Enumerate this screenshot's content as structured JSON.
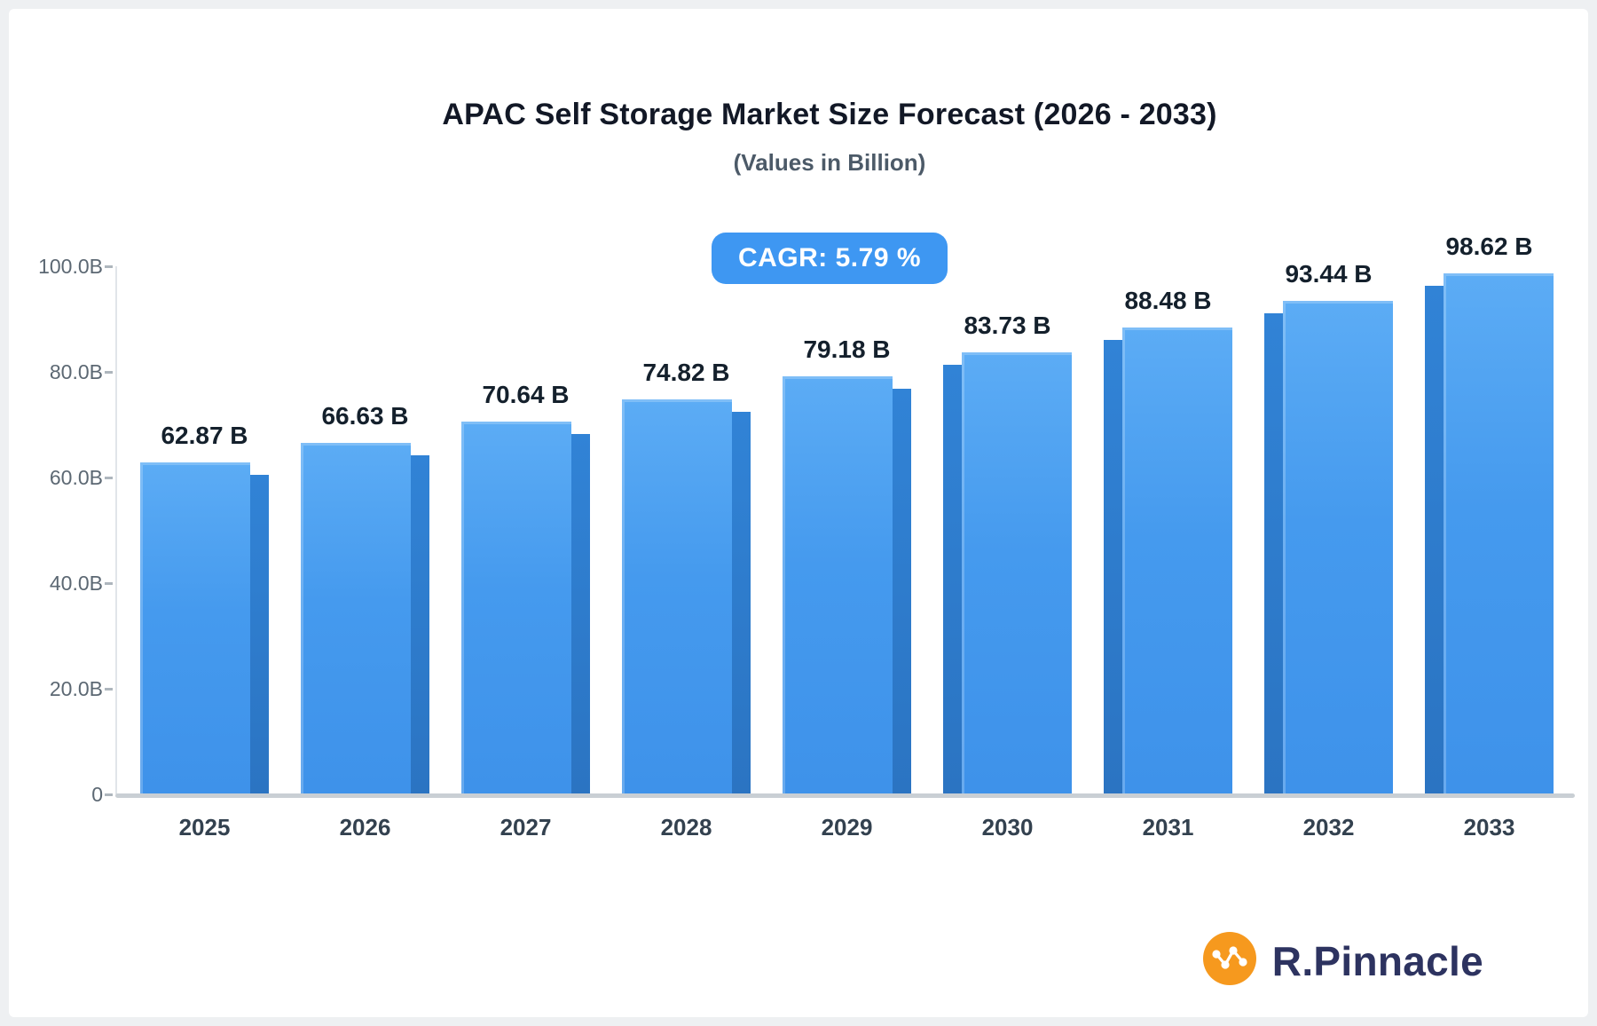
{
  "header": {
    "title": "APAC Self Storage Market Size Forecast (2026 - 2033)",
    "subtitle": "(Values in Billion)"
  },
  "badge": {
    "label": "CAGR: 5.79 %"
  },
  "brand": {
    "name": "R.Pinnacle",
    "icon": "network-nodes-icon",
    "icon_color": "#F6991E",
    "text_color": "#2D3360"
  },
  "colors": {
    "bar_face_top": "#5CACF5",
    "bar_face_bottom": "#3E92EA",
    "bar_side": "#2B74C2",
    "badge_bg": "#3E97F2",
    "axis_line": "#C9CFD4"
  },
  "chart_data": {
    "type": "bar",
    "title": "APAC Self Storage Market Size Forecast (2026 - 2033)",
    "subtitle": "(Values in Billion)",
    "cagr_label": "CAGR: 5.79 %",
    "categories": [
      "2025",
      "2026",
      "2027",
      "2028",
      "2029",
      "2030",
      "2031",
      "2032",
      "2033"
    ],
    "values": [
      62.87,
      66.63,
      70.64,
      74.82,
      79.18,
      83.73,
      88.48,
      93.44,
      98.62
    ],
    "value_labels": [
      "62.87 B",
      "66.63 B",
      "70.64 B",
      "74.82 B",
      "79.18 B",
      "83.73 B",
      "88.48 B",
      "93.44 B",
      "98.62 B"
    ],
    "ytick_values": [
      100,
      80,
      60,
      40,
      20,
      0
    ],
    "ytick_labels": [
      "100.0B",
      "80.0B",
      "60.0B",
      "40.0B",
      "20.0B",
      "0"
    ],
    "ylim": [
      0,
      100
    ],
    "unit": "Billion",
    "legend": "none",
    "grid": "off"
  }
}
